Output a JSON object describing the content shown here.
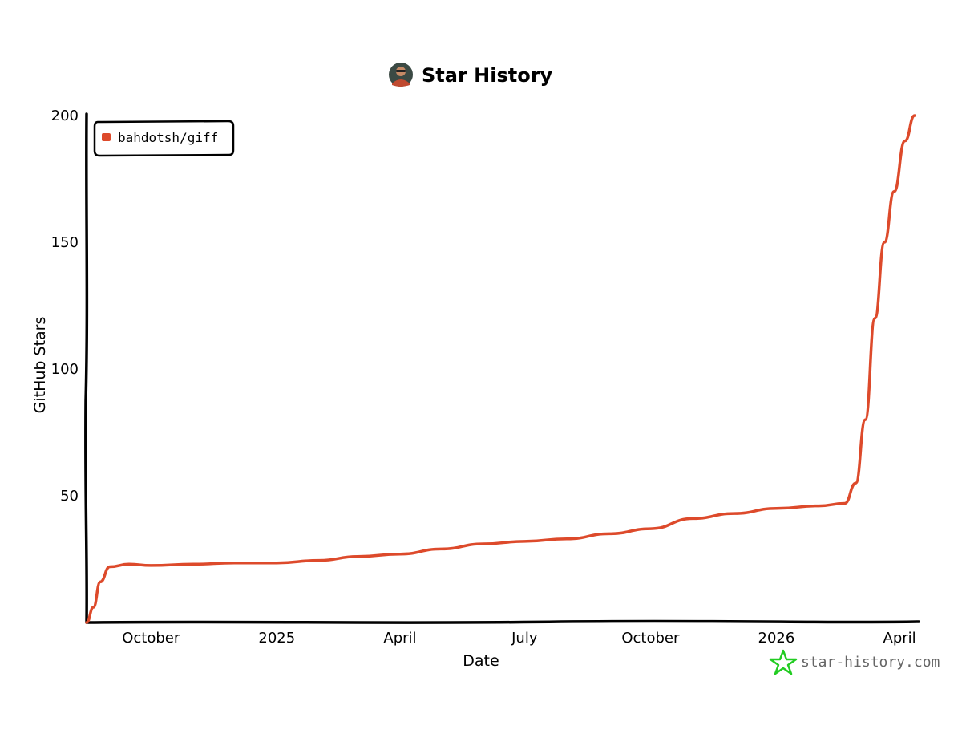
{
  "chart_data": {
    "type": "line",
    "title": "Star History",
    "xlabel": "Date",
    "ylabel": "GitHub Stars",
    "ylim": [
      0,
      200
    ],
    "yticks": [
      50,
      100,
      150,
      200
    ],
    "xlim": [
      "2024-08-15",
      "2026-04-15"
    ],
    "xticks": [
      {
        "date": "2024-10-01",
        "label": "October"
      },
      {
        "date": "2025-01-01",
        "label": "2025"
      },
      {
        "date": "2025-04-01",
        "label": "April"
      },
      {
        "date": "2025-07-01",
        "label": "July"
      },
      {
        "date": "2025-10-01",
        "label": "October"
      },
      {
        "date": "2026-01-01",
        "label": "2026"
      },
      {
        "date": "2026-04-01",
        "label": "April"
      }
    ],
    "legend_position": "top-left",
    "grid": false,
    "series": [
      {
        "name": "bahdotsh/giff",
        "color": "#dd4a2b",
        "points": [
          {
            "x": "2024-08-15",
            "y": 0
          },
          {
            "x": "2024-08-20",
            "y": 6
          },
          {
            "x": "2024-08-25",
            "y": 16
          },
          {
            "x": "2024-09-01",
            "y": 22
          },
          {
            "x": "2024-09-15",
            "y": 23
          },
          {
            "x": "2024-10-01",
            "y": 22.5
          },
          {
            "x": "2024-11-01",
            "y": 23
          },
          {
            "x": "2024-12-01",
            "y": 23.5
          },
          {
            "x": "2025-01-01",
            "y": 23.5
          },
          {
            "x": "2025-02-01",
            "y": 24.5
          },
          {
            "x": "2025-03-01",
            "y": 26
          },
          {
            "x": "2025-04-01",
            "y": 27
          },
          {
            "x": "2025-05-01",
            "y": 29
          },
          {
            "x": "2025-06-01",
            "y": 31
          },
          {
            "x": "2025-07-01",
            "y": 32
          },
          {
            "x": "2025-08-01",
            "y": 33
          },
          {
            "x": "2025-09-01",
            "y": 35
          },
          {
            "x": "2025-10-01",
            "y": 37
          },
          {
            "x": "2025-11-01",
            "y": 41
          },
          {
            "x": "2025-12-01",
            "y": 43
          },
          {
            "x": "2026-01-01",
            "y": 45
          },
          {
            "x": "2026-02-01",
            "y": 46
          },
          {
            "x": "2026-02-20",
            "y": 47
          },
          {
            "x": "2026-02-28",
            "y": 55
          },
          {
            "x": "2026-03-07",
            "y": 80
          },
          {
            "x": "2026-03-14",
            "y": 120
          },
          {
            "x": "2026-03-21",
            "y": 150
          },
          {
            "x": "2026-03-28",
            "y": 170
          },
          {
            "x": "2026-04-05",
            "y": 190
          },
          {
            "x": "2026-04-12",
            "y": 200
          }
        ]
      }
    ]
  },
  "watermark": {
    "text": "star-history.com",
    "icon": "star-outline-icon",
    "icon_color": "#22cc22"
  },
  "avatar": {
    "icon": "user-avatar-icon"
  }
}
